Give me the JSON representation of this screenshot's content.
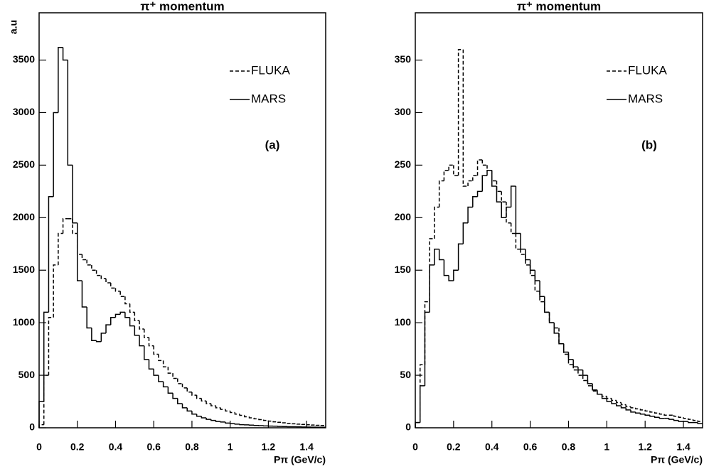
{
  "chart_data": [
    {
      "type": "histogram",
      "title": "π⁺ momentum",
      "x_label": "Pπ (GeV/c)",
      "y_label": "a.u",
      "annotation": "(a)",
      "legend": "top right",
      "bins": [
        0,
        0.025,
        0.05,
        0.075,
        0.1,
        0.125,
        0.15,
        0.175,
        0.2,
        0.225,
        0.25,
        0.275,
        0.3,
        0.325,
        0.35,
        0.375,
        0.4,
        0.425,
        0.45,
        0.475,
        0.5,
        0.525,
        0.55,
        0.575,
        0.6,
        0.625,
        0.65,
        0.675,
        0.7,
        0.725,
        0.75,
        0.775,
        0.8,
        0.825,
        0.85,
        0.875,
        0.9,
        0.925,
        0.95,
        0.975,
        1,
        1.025,
        1.05,
        1.075,
        1.1,
        1.125,
        1.15,
        1.175,
        1.2,
        1.225,
        1.25,
        1.275,
        1.3,
        1.325,
        1.35,
        1.375,
        1.4,
        1.425,
        1.45,
        1.475,
        1.5
      ],
      "series": [
        {
          "name": "FLUKA",
          "color": "#000000",
          "line_style": "dashed",
          "values": [
            30,
            500,
            1050,
            1550,
            1850,
            1990,
            1990,
            1850,
            1650,
            1600,
            1550,
            1500,
            1450,
            1420,
            1380,
            1330,
            1300,
            1250,
            1180,
            1100,
            1020,
            940,
            860,
            780,
            700,
            640,
            580,
            520,
            470,
            420,
            380,
            340,
            310,
            280,
            255,
            230,
            210,
            190,
            175,
            160,
            145,
            130,
            118,
            105,
            95,
            85,
            78,
            70,
            63,
            57,
            52,
            47,
            42,
            38,
            35,
            32,
            29,
            26,
            24,
            22
          ]
        },
        {
          "name": "MARS",
          "color": "#000000",
          "line_style": "solid",
          "values": [
            250,
            1100,
            2200,
            3000,
            3620,
            3500,
            2500,
            1950,
            1400,
            1150,
            950,
            830,
            820,
            900,
            980,
            1050,
            1080,
            1100,
            1050,
            970,
            880,
            780,
            650,
            560,
            500,
            440,
            390,
            330,
            280,
            230,
            190,
            160,
            130,
            110,
            95,
            80,
            70,
            60,
            55,
            45,
            40,
            35,
            30,
            28,
            25,
            22,
            20,
            18,
            16,
            15,
            13,
            12,
            10,
            10,
            9,
            8,
            7,
            6,
            5,
            5
          ]
        }
      ],
      "xlim": [
        0,
        1.5
      ],
      "ylim": [
        0,
        3950
      ],
      "xticks": [
        0,
        0.2,
        0.4,
        0.6,
        0.8,
        1,
        1.2,
        1.4
      ],
      "yticks": [
        0,
        500,
        1000,
        1500,
        2000,
        2500,
        3000,
        3500
      ]
    },
    {
      "type": "histogram",
      "title": "π⁺ momentum",
      "x_label": "Pπ (GeV/c)",
      "annotation": "(b)",
      "legend": "top right",
      "bins": [
        0,
        0.025,
        0.05,
        0.075,
        0.1,
        0.125,
        0.15,
        0.175,
        0.2,
        0.225,
        0.25,
        0.275,
        0.3,
        0.325,
        0.35,
        0.375,
        0.4,
        0.425,
        0.45,
        0.475,
        0.5,
        0.525,
        0.55,
        0.575,
        0.6,
        0.625,
        0.65,
        0.675,
        0.7,
        0.725,
        0.75,
        0.775,
        0.8,
        0.825,
        0.85,
        0.875,
        0.9,
        0.925,
        0.95,
        0.975,
        1,
        1.025,
        1.05,
        1.075,
        1.1,
        1.125,
        1.15,
        1.175,
        1.2,
        1.225,
        1.25,
        1.275,
        1.3,
        1.325,
        1.35,
        1.375,
        1.4,
        1.425,
        1.45,
        1.475,
        1.5
      ],
      "series": [
        {
          "name": "FLUKA",
          "color": "#000000",
          "line_style": "dashed",
          "values": [
            5,
            60,
            120,
            180,
            210,
            235,
            245,
            250,
            240,
            360,
            230,
            235,
            240,
            255,
            250,
            245,
            235,
            225,
            215,
            195,
            185,
            170,
            165,
            155,
            145,
            130,
            120,
            110,
            100,
            95,
            80,
            70,
            60,
            55,
            50,
            45,
            40,
            35,
            32,
            30,
            28,
            26,
            24,
            22,
            20,
            19,
            18,
            17,
            16,
            15,
            14,
            13,
            12,
            12,
            11,
            10,
            9,
            8,
            7,
            6
          ]
        },
        {
          "name": "MARS",
          "color": "#000000",
          "line_style": "solid",
          "values": [
            5,
            40,
            110,
            155,
            170,
            160,
            145,
            140,
            150,
            175,
            195,
            210,
            220,
            225,
            240,
            245,
            230,
            215,
            200,
            210,
            230,
            185,
            170,
            160,
            150,
            140,
            125,
            110,
            100,
            90,
            80,
            72,
            65,
            58,
            55,
            50,
            42,
            36,
            32,
            28,
            25,
            23,
            21,
            19,
            17,
            15,
            14,
            13,
            12,
            11,
            10,
            9,
            9,
            8,
            7,
            6,
            6,
            5,
            5,
            4
          ]
        }
      ],
      "xlim": [
        0,
        1.5
      ],
      "ylim": [
        0,
        395
      ],
      "xticks": [
        0,
        0.2,
        0.4,
        0.6,
        0.8,
        1,
        1.2,
        1.4
      ],
      "yticks": [
        0,
        50,
        100,
        150,
        200,
        250,
        300,
        350
      ]
    }
  ]
}
